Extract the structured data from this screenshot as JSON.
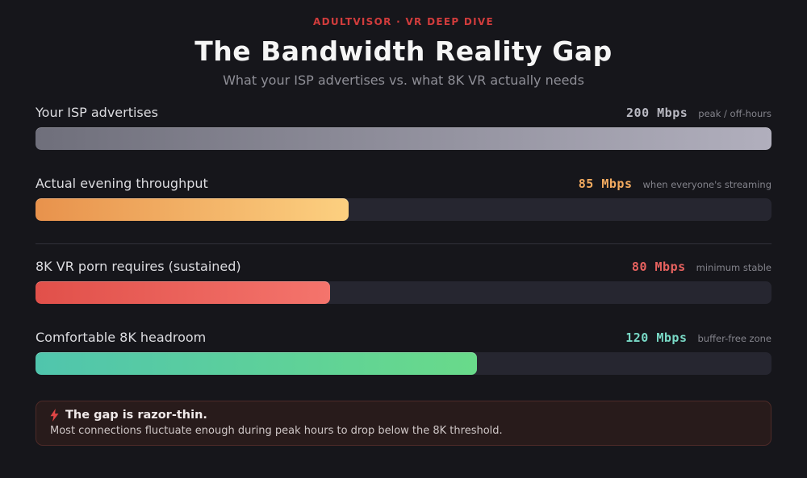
{
  "header": {
    "eyebrow": "ADULTVISOR · VR DEEP DIVE",
    "title": "The Bandwidth Reality Gap",
    "subtitle": "What your ISP advertises vs. what 8K VR actually needs"
  },
  "chart_data": {
    "type": "bar",
    "orientation": "horizontal",
    "title": "The Bandwidth Reality Gap",
    "subtitle": "What your ISP advertises vs. what 8K VR actually needs",
    "unit": "Mbps",
    "axis_min": 0,
    "axis_max": 200,
    "grid": false,
    "legend": false,
    "divider_after_index": 1,
    "categories": [
      "Your ISP advertises",
      "Actual evening throughput",
      "8K VR porn requires (sustained)",
      "Comfortable 8K headroom"
    ],
    "values": [
      200,
      85,
      80,
      120
    ],
    "rows": [
      {
        "label": "Your ISP advertises",
        "value": 200,
        "value_label": "200 Mbps",
        "note": "peak / off-hours",
        "percent": 100,
        "bar_color_start": "#6f6f7b",
        "bar_color_end": "#b1afbd",
        "value_color": "#b9b9c2"
      },
      {
        "label": "Actual evening throughput",
        "value": 85,
        "value_label": "85 Mbps",
        "note": "when everyone's streaming",
        "percent": 42.5,
        "bar_color_start": "#e8924c",
        "bar_color_end": "#fcd080",
        "value_color": "#f3ab60"
      },
      {
        "label": "8K VR porn requires (sustained)",
        "value": 80,
        "value_label": "80 Mbps",
        "note": "minimum stable",
        "percent": 40,
        "bar_color_start": "#e1504a",
        "bar_color_end": "#f4746c",
        "value_color": "#e7625f"
      },
      {
        "label": "Comfortable 8K headroom",
        "value": 120,
        "value_label": "120 Mbps",
        "note": "buffer-free zone",
        "percent": 60,
        "bar_color_start": "#50c5ad",
        "bar_color_end": "#69da8a",
        "value_color": "#79d9c6"
      }
    ]
  },
  "callout": {
    "icon": "lightning-bolt",
    "title": "The gap is razor-thin.",
    "body": "Most connections fluctuate enough during peak hours to drop below the 8K threshold."
  },
  "colors": {
    "background": "#16161b",
    "track": "#262630",
    "divider": "#30303a",
    "accent_red": "#d13c3c",
    "bolt": "#e04545"
  }
}
